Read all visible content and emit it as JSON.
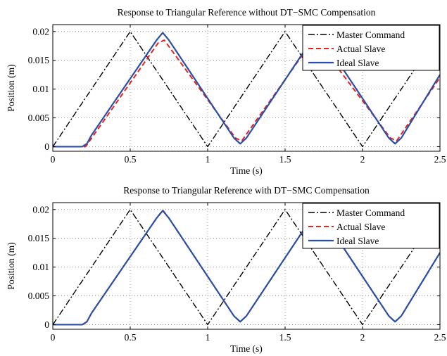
{
  "chart_data": [
    {
      "type": "line",
      "title": "Response to Triangular Reference without DT−SMC Compensation",
      "xlabel": "Time (s)",
      "ylabel": "Position (m)",
      "xlim": [
        0,
        2.5
      ],
      "ylim": [
        -0.0008,
        0.0212
      ],
      "xticks": [
        0,
        0.5,
        1,
        1.5,
        2,
        2.5
      ],
      "xtick_labels": [
        "0",
        "0.5",
        "1",
        "1.5",
        "2",
        "2.5"
      ],
      "yticks": [
        0,
        0.005,
        0.01,
        0.015,
        0.02
      ],
      "ytick_labels": [
        "0",
        "0.005",
        "0.01",
        "0.015",
        "0.02"
      ],
      "grid": true,
      "legend_position": "top-right",
      "series": [
        {
          "name": "Master Command",
          "style": "dashdot",
          "color": "#000000",
          "x": [
            0,
            0.5,
            1.0,
            1.5,
            2.0,
            2.5
          ],
          "y": [
            0,
            0.02,
            0,
            0.02,
            0,
            0.02
          ]
        },
        {
          "name": "Actual Slave",
          "style": "dashed",
          "color": "#e8231c",
          "x": [
            0,
            0.21,
            0.22,
            0.68,
            0.72,
            1.18,
            1.22,
            1.68,
            1.72,
            2.18,
            2.22,
            2.5
          ],
          "y": [
            0,
            0,
            0.0003,
            0.018,
            0.0185,
            0.0015,
            0.001,
            0.0185,
            0.018,
            0.0015,
            0.001,
            0.012
          ]
        },
        {
          "name": "Ideal Slave",
          "style": "solid",
          "color": "#2a4fa8",
          "x": [
            0,
            0.19,
            0.22,
            0.25,
            0.67,
            0.71,
            0.75,
            1.17,
            1.21,
            1.25,
            1.67,
            1.71,
            1.75,
            2.17,
            2.21,
            2.25,
            2.5
          ],
          "y": [
            0,
            0,
            0.0005,
            0.002,
            0.0185,
            0.0198,
            0.0185,
            0.0015,
            0.0005,
            0.0015,
            0.0185,
            0.0198,
            0.0185,
            0.0015,
            0.0005,
            0.0015,
            0.0125
          ]
        }
      ]
    },
    {
      "type": "line",
      "title": "Response to Triangular Reference with DT−SMC Compensation",
      "xlabel": "Time (s)",
      "ylabel": "Position (m)",
      "xlim": [
        0,
        2.5
      ],
      "ylim": [
        -0.0008,
        0.0212
      ],
      "xticks": [
        0,
        0.5,
        1,
        1.5,
        2,
        2.5
      ],
      "xtick_labels": [
        "0",
        "0.5",
        "1",
        "1.5",
        "2",
        "2.5"
      ],
      "yticks": [
        0,
        0.005,
        0.01,
        0.015,
        0.02
      ],
      "ytick_labels": [
        "0",
        "0.005",
        "0.01",
        "0.015",
        "0.02"
      ],
      "grid": true,
      "legend_position": "top-right",
      "series": [
        {
          "name": "Master Command",
          "style": "dashdot",
          "color": "#000000",
          "x": [
            0,
            0.5,
            1.0,
            1.5,
            2.0,
            2.5
          ],
          "y": [
            0,
            0.02,
            0,
            0.02,
            0,
            0.02
          ]
        },
        {
          "name": "Actual Slave",
          "style": "dashed",
          "color": "#e8231c",
          "x": [
            0,
            0.19,
            0.22,
            0.25,
            0.67,
            0.71,
            0.75,
            1.17,
            1.21,
            1.25,
            1.67,
            1.71,
            1.75,
            2.17,
            2.21,
            2.25,
            2.5
          ],
          "y": [
            0,
            0,
            0.0005,
            0.002,
            0.0185,
            0.0199,
            0.0185,
            0.0015,
            0.0005,
            0.0015,
            0.0185,
            0.0199,
            0.0185,
            0.0015,
            0.0005,
            0.0015,
            0.0125
          ]
        },
        {
          "name": "Ideal Slave",
          "style": "solid",
          "color": "#2a4fa8",
          "x": [
            0,
            0.19,
            0.22,
            0.25,
            0.67,
            0.71,
            0.75,
            1.17,
            1.21,
            1.25,
            1.67,
            1.71,
            1.75,
            2.17,
            2.21,
            2.25,
            2.5
          ],
          "y": [
            0,
            0,
            0.0005,
            0.002,
            0.0185,
            0.0198,
            0.0185,
            0.0015,
            0.0005,
            0.0015,
            0.0185,
            0.0198,
            0.0185,
            0.0015,
            0.0005,
            0.0015,
            0.0125
          ]
        }
      ]
    }
  ]
}
